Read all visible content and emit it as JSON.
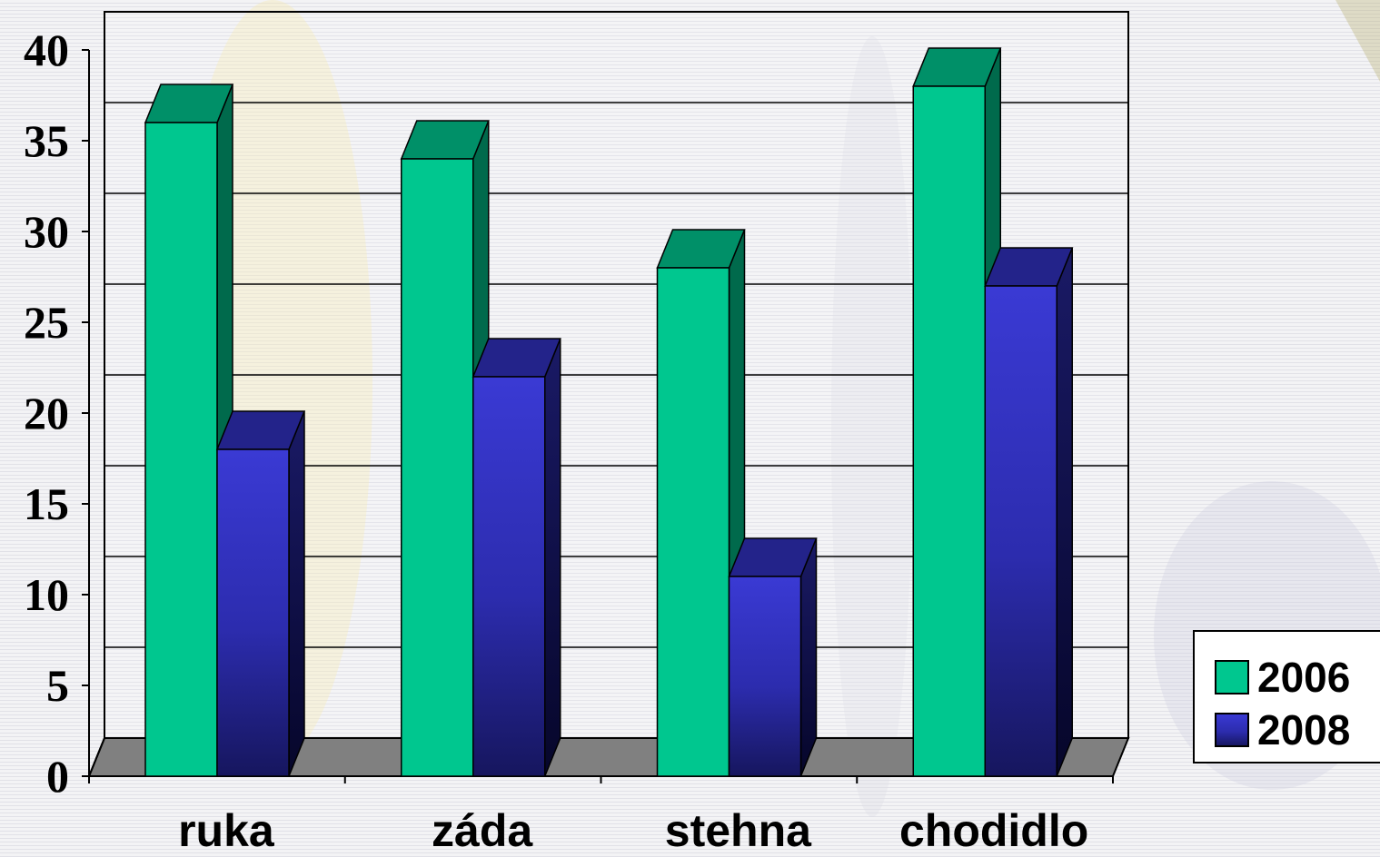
{
  "chart_data": {
    "type": "bar",
    "style": "3d-clustered-column",
    "categories": [
      "ruka",
      "záda",
      "stehna",
      "chodidlo"
    ],
    "series": [
      {
        "name": "2006",
        "values": [
          36,
          34,
          28,
          38
        ],
        "color": "#00c78f",
        "top_color": "#009068",
        "side_color": "#006a4c"
      },
      {
        "name": "2008",
        "values": [
          18,
          22,
          11,
          27
        ],
        "color": "#3333cc",
        "top_color": "#23238a",
        "side_color": "#101050"
      }
    ],
    "y_ticks": [
      "0",
      "5",
      "10",
      "15",
      "20",
      "25",
      "30",
      "35",
      "40"
    ],
    "ylim": [
      0,
      40
    ],
    "grid": true,
    "floor_color": "#808080",
    "legend_position": "bottom-right",
    "title": "",
    "xlabel": "",
    "ylabel": ""
  }
}
